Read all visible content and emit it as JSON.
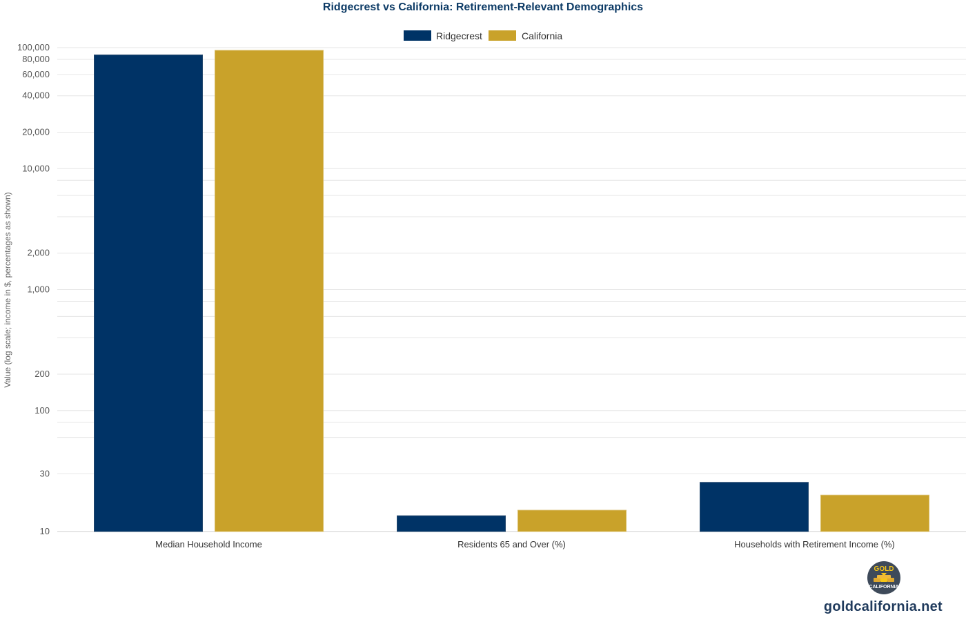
{
  "chart_data": {
    "type": "bar",
    "title": "Ridgecrest vs California: Retirement-Relevant Demographics",
    "ylabel": "Value (log scale; income in $, percentages as shown)",
    "xlabel": "",
    "y_scale": "log",
    "ylim": [
      10,
      100000
    ],
    "categories": [
      "Median Household Income",
      "Residents 65 and Over (%)",
      "Households with Retirement Income (%)"
    ],
    "series": [
      {
        "name": "Ridgecrest",
        "color": "#003366",
        "values": [
          87000,
          13.5,
          25.5
        ]
      },
      {
        "name": "California",
        "color": "#c9a22a",
        "values": [
          95000,
          15,
          20
        ]
      }
    ],
    "y_ticks": [
      {
        "value": 100000,
        "label": "100,000"
      },
      {
        "value": 80000,
        "label": "80,000"
      },
      {
        "value": 60000,
        "label": "60,000"
      },
      {
        "value": 40000,
        "label": "40,000"
      },
      {
        "value": 20000,
        "label": "20,000"
      },
      {
        "value": 10000,
        "label": "10,000"
      },
      {
        "value": 2000,
        "label": "2,000"
      },
      {
        "value": 1000,
        "label": "1,000"
      },
      {
        "value": 200,
        "label": "200"
      },
      {
        "value": 100,
        "label": "100"
      },
      {
        "value": 30,
        "label": "30"
      },
      {
        "value": 10,
        "label": "10"
      }
    ],
    "minor_gridlines": [
      8000,
      6000,
      4000,
      800,
      600,
      400,
      80,
      60
    ],
    "grid": true,
    "legend_position": "top-center"
  },
  "branding": {
    "logo_text_top": "GOLD",
    "logo_text_bottom": "CALIFORNIA",
    "site": "goldcalifornia.net",
    "logo_icon": "gold-bars-icon"
  }
}
